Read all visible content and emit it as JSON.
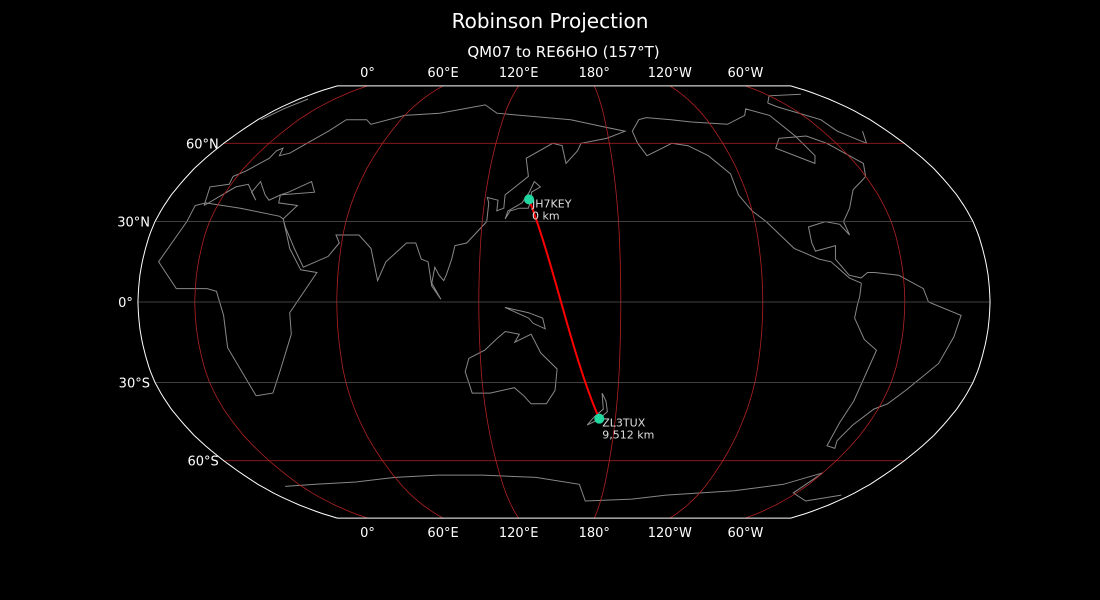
{
  "title": "Robinson Projection",
  "subtitle": "QM07 to RE66HO (157°T)",
  "map": {
    "projection": "Robinson",
    "central_longitude": 156,
    "background": "#000000",
    "coastline_color": "#888888",
    "meridian_color": "#b22222",
    "parallel_color": "#b22222",
    "minor_parallel_color": "#555555",
    "path_color": "#ff0000",
    "station_color": "#20d8a0",
    "longitude_labels": [
      {
        "lon": 0,
        "text": "0°"
      },
      {
        "lon": 60,
        "text": "60°E"
      },
      {
        "lon": 120,
        "text": "120°E"
      },
      {
        "lon": 180,
        "text": "180°"
      },
      {
        "lon": -120,
        "text": "120°W"
      },
      {
        "lon": -60,
        "text": "60°W"
      }
    ],
    "latitude_labels": [
      {
        "lat": 60,
        "text": "60°N"
      },
      {
        "lat": 30,
        "text": "30°N"
      },
      {
        "lat": 0,
        "text": "0°"
      },
      {
        "lat": -30,
        "text": "30°S"
      },
      {
        "lat": -60,
        "text": "60°S"
      }
    ]
  },
  "stations": [
    {
      "call": "JH7KEY",
      "distance": "0 km",
      "lat": 38.3,
      "lon": 140.1
    },
    {
      "call": "ZL3TUX",
      "distance": "9,512 km",
      "lat": -43.6,
      "lon": 172.5
    }
  ]
}
